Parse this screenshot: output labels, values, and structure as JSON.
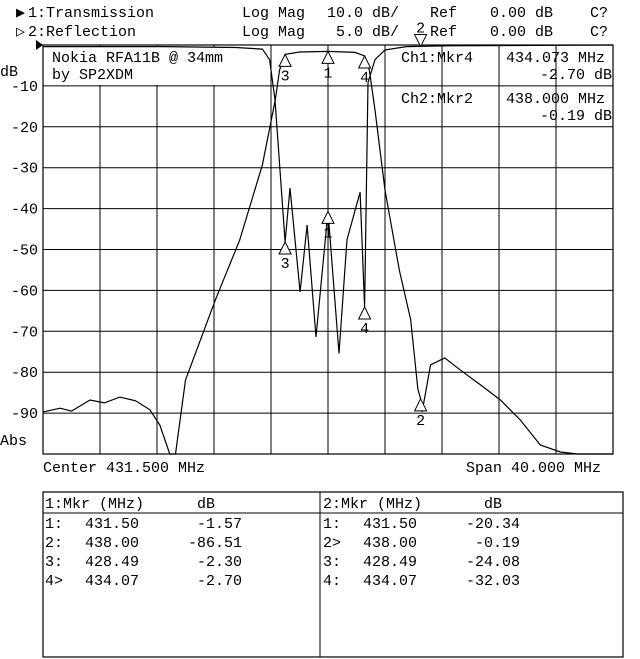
{
  "header": {
    "ch1": {
      "marker": "▶",
      "name": "1:Transmission",
      "format": "Log Mag",
      "scale": "10.0 dB/",
      "ref_label": "Ref",
      "ref": "0.00 dB",
      "cal": "C?"
    },
    "ch2": {
      "marker": "▷",
      "name": "2:Reflection",
      "format": "Log Mag",
      "scale": "5.0 dB/",
      "ref_label": "Ref",
      "ref": "0.00 dB",
      "cal": "C?"
    }
  },
  "annotation": {
    "line1": "Nokia RFA11B @ 34mm",
    "line2": "by SP2XDM"
  },
  "active_markers": {
    "ch1": {
      "label": "Ch1:Mkr4",
      "freq": "434.073 MHz",
      "value": "-2.70 dB"
    },
    "ch2": {
      "label": "Ch2:Mkr2",
      "freq": "438.000 MHz",
      "value": "-0.19 dB"
    }
  },
  "footer": {
    "center": "Center 431.500 MHz",
    "span": "Span 40.000 MHz"
  },
  "marker_table": {
    "ch1": {
      "header": "1:Mkr (MHz)",
      "unit": "dB",
      "rows": [
        {
          "id": "1:",
          "freq": "431.50",
          "db": "-1.57"
        },
        {
          "id": "2:",
          "freq": "438.00",
          "db": "-86.51"
        },
        {
          "id": "3:",
          "freq": "428.49",
          "db": "-2.30"
        },
        {
          "id": "4>",
          "freq": "434.07",
          "db": "-2.70"
        }
      ]
    },
    "ch2": {
      "header": "2:Mkr (MHz)",
      "unit": "dB",
      "rows": [
        {
          "id": "1:",
          "freq": "431.50",
          "db": "-20.34"
        },
        {
          "id": "2>",
          "freq": "438.00",
          "db": "-0.19"
        },
        {
          "id": "3:",
          "freq": "428.49",
          "db": "-24.08"
        },
        {
          "id": "4:",
          "freq": "434.07",
          "db": "-32.03"
        }
      ]
    }
  },
  "chart_data": {
    "type": "line",
    "ylabel": "dB",
    "yticks": [
      "-10",
      "-20",
      "-30",
      "-40",
      "-50",
      "-60",
      "-70",
      "-80",
      "-90"
    ],
    "bottom_label": "Abs",
    "xlim": [
      411.5,
      451.5
    ],
    "grid": true,
    "series": [
      {
        "name": "1:Transmission",
        "ylim": [
          -100,
          0
        ],
        "color": "#000000",
        "x": [
          411.5,
          412.7,
          413.5,
          414.8,
          415.8,
          416.9,
          418.0,
          419.0,
          419.7,
          420.4,
          420.8,
          421.5,
          423.6,
          425.3,
          426.9,
          427.8,
          428.1,
          428.49,
          429.5,
          431.5,
          433.4,
          434.07,
          434.4,
          434.8,
          435.5,
          436.5,
          437.3,
          437.8,
          438.0,
          438.1,
          438.7,
          439.7,
          440.8,
          442.2,
          443.6,
          445.0,
          446.4,
          447.8,
          449.0,
          451.5
        ],
        "y": [
          -89.7,
          -88.8,
          -89.5,
          -86.8,
          -87.5,
          -86.1,
          -87.0,
          -89.2,
          -92.9,
          -100,
          -100,
          -81.9,
          -62.3,
          -47.7,
          -29.3,
          -13.4,
          -6.1,
          -2.3,
          -1.7,
          -1.57,
          -1.8,
          -2.7,
          -6.1,
          -15.9,
          -35.5,
          -55.0,
          -67.2,
          -84.0,
          -86.5,
          -89.7,
          -78.2,
          -76.5,
          -79.5,
          -83.1,
          -86.8,
          -91.7,
          -97.8,
          -99.5,
          -100,
          -100
        ],
        "markers": [
          {
            "id": "1",
            "freq": 431.5,
            "db": -1.57
          },
          {
            "id": "2",
            "freq": 438.0,
            "db": -86.51
          },
          {
            "id": "3",
            "freq": 428.49,
            "db": -2.3
          },
          {
            "id": "4",
            "freq": 434.07,
            "db": -2.7
          }
        ]
      },
      {
        "name": "2:Reflection",
        "ylim": [
          -50,
          0
        ],
        "color": "#000000",
        "x": [
          411.5,
          420.0,
          425.0,
          426.9,
          427.4,
          427.78,
          428.49,
          428.83,
          429.54,
          430.03,
          430.66,
          431.5,
          432.27,
          432.83,
          433.75,
          434.07,
          434.31,
          434.8,
          435.5,
          437.0,
          440.0,
          451.5
        ],
        "y": [
          -0.2,
          -0.2,
          -0.3,
          -0.5,
          -1.8,
          -6.7,
          -24.08,
          -17.5,
          -30.2,
          -22.0,
          -35.7,
          -20.34,
          -37.7,
          -23.8,
          -18.0,
          -32.03,
          -4.6,
          -1.8,
          -0.6,
          -0.19,
          -0.1,
          0
        ],
        "markers": [
          {
            "id": "1",
            "freq": 431.5,
            "db": -20.34
          },
          {
            "id": "2",
            "freq": 438.0,
            "db": -0.19
          },
          {
            "id": "3",
            "freq": 428.49,
            "db": -24.08
          },
          {
            "id": "4",
            "freq": 434.07,
            "db": -32.03
          }
        ]
      }
    ]
  }
}
